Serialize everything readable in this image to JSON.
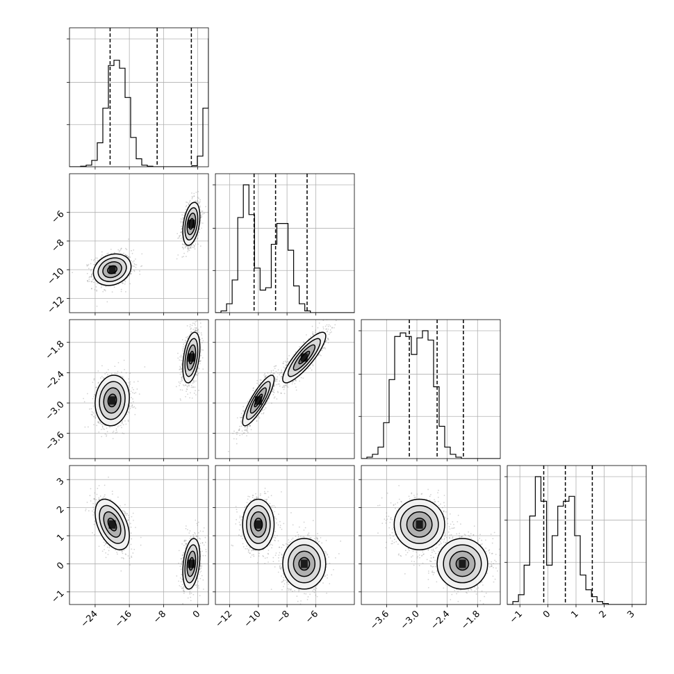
{
  "chart_data": {
    "type": "corner",
    "n_params": 4,
    "params": [
      {
        "range": [
          -30,
          2.5
        ],
        "ticks": [
          -24,
          -16,
          -8,
          0
        ],
        "tick_labels": [
          "−24",
          "−16",
          "−8",
          "0"
        ]
      },
      {
        "range": [
          -13.0,
          -3.3
        ],
        "ticks": [
          -12,
          -10,
          -8,
          -6
        ],
        "tick_labels": [
          "−12",
          "−10",
          "−8",
          "−6"
        ]
      },
      {
        "range": [
          -4.1,
          -1.35
        ],
        "ticks": [
          -3.6,
          -3.0,
          -2.4,
          -1.8
        ],
        "tick_labels": [
          "−3.6",
          "−3.0",
          "−2.4",
          "−1.8"
        ]
      },
      {
        "range": [
          -1.45,
          3.5
        ],
        "ticks": [
          -1,
          0,
          1,
          2,
          3
        ],
        "tick_labels": [
          "−1",
          "0",
          "1",
          "2",
          "3"
        ]
      }
    ],
    "quantiles": [
      [
        -20.5,
        -9.5,
        -1.5
      ],
      [
        -10.3,
        -8.8,
        -6.6
      ],
      [
        -3.15,
        -2.6,
        -2.08
      ],
      [
        -0.15,
        0.62,
        1.58
      ]
    ],
    "histograms": [
      {
        "edges_start": -30,
        "edges_step": 1.3,
        "counts": [
          0,
          0,
          1,
          3,
          12,
          45,
          110,
          190,
          200,
          185,
          130,
          55,
          15,
          3,
          1,
          0,
          0,
          0,
          0,
          0,
          0,
          0,
          2,
          20,
          110,
          240,
          240,
          115,
          20,
          3
        ]
      },
      {
        "edges_start": -13.0,
        "edges_step": 0.39,
        "counts": [
          0,
          3,
          15,
          55,
          160,
          215,
          165,
          75,
          38,
          42,
          115,
          150,
          150,
          105,
          45,
          15,
          3,
          0,
          0,
          0,
          0,
          0,
          0,
          0,
          0
        ]
      },
      {
        "edges_start": -4.1,
        "edges_step": 0.11,
        "counts": [
          0,
          2,
          6,
          16,
          50,
          110,
          170,
          175,
          170,
          145,
          168,
          178,
          165,
          100,
          45,
          16,
          6,
          2,
          0,
          0,
          0,
          0,
          0,
          0,
          0
        ]
      },
      {
        "edges_start": -1.45,
        "edges_step": 0.2,
        "counts": [
          0,
          3,
          10,
          40,
          90,
          130,
          105,
          40,
          70,
          100,
          105,
          110,
          70,
          30,
          15,
          8,
          3,
          1,
          0,
          0,
          0,
          0,
          0,
          0,
          0
        ]
      }
    ],
    "modes": [
      {
        "p": 0,
        "mean": -20.0,
        "sd": 2.2
      },
      {
        "p": 0,
        "mean": -1.5,
        "sd": 1.0
      },
      {
        "p": 1,
        "mean": -10.0,
        "sd": 0.55
      },
      {
        "p": 1,
        "mean": -6.8,
        "sd": 0.75
      },
      {
        "p": 2,
        "mean": -2.95,
        "sd": 0.25
      },
      {
        "p": 2,
        "mean": -2.1,
        "sd": 0.25
      },
      {
        "p": 3,
        "mean": 1.4,
        "sd": 0.45
      },
      {
        "p": 3,
        "mean": 0.0,
        "sd": 0.45
      }
    ],
    "pairs": [
      {
        "row": 1,
        "col": 0,
        "blobs": [
          {
            "cx": -20.0,
            "cy": -10.0,
            "sx": 2.2,
            "sy": 0.55,
            "rho": 0.2
          },
          {
            "cx": -1.5,
            "cy": -6.8,
            "sx": 1.0,
            "sy": 0.75,
            "rho": 0.35
          }
        ]
      },
      {
        "row": 2,
        "col": 0,
        "blobs": [
          {
            "cx": -20.0,
            "cy": -2.95,
            "sx": 2.0,
            "sy": 0.25,
            "rho": 0.1
          },
          {
            "cx": -1.5,
            "cy": -2.1,
            "sx": 1.0,
            "sy": 0.25,
            "rho": 0.4
          }
        ]
      },
      {
        "row": 2,
        "col": 1,
        "blobs": [
          {
            "cx": -10.0,
            "cy": -2.95,
            "sx": 0.55,
            "sy": 0.25,
            "rho": 0.85
          },
          {
            "cx": -6.8,
            "cy": -2.1,
            "sx": 0.75,
            "sy": 0.25,
            "rho": 0.85
          }
        ]
      },
      {
        "row": 3,
        "col": 0,
        "blobs": [
          {
            "cx": -20.0,
            "cy": 1.4,
            "sx": 2.0,
            "sy": 0.45,
            "rho": -0.45
          },
          {
            "cx": -1.5,
            "cy": 0.0,
            "sx": 1.0,
            "sy": 0.45,
            "rho": 0.3
          }
        ]
      },
      {
        "row": 3,
        "col": 1,
        "blobs": [
          {
            "cx": -10.0,
            "cy": 1.4,
            "sx": 0.55,
            "sy": 0.45,
            "rho": 0.0
          },
          {
            "cx": -6.8,
            "cy": 0.0,
            "sx": 0.75,
            "sy": 0.45,
            "rho": 0.0
          }
        ]
      },
      {
        "row": 3,
        "col": 2,
        "blobs": [
          {
            "cx": -2.95,
            "cy": 1.4,
            "sx": 0.25,
            "sy": 0.45,
            "rho": 0.0
          },
          {
            "cx": -2.1,
            "cy": 0.0,
            "sx": 0.25,
            "sy": 0.45,
            "rho": 0.0
          }
        ]
      }
    ],
    "contour_levels_sigma": [
      0.5,
      1.0,
      1.5,
      2.0
    ],
    "grid": true,
    "line_color": "#000000",
    "scatter_color": "#7f7f7f",
    "density_colormap": "greys"
  }
}
